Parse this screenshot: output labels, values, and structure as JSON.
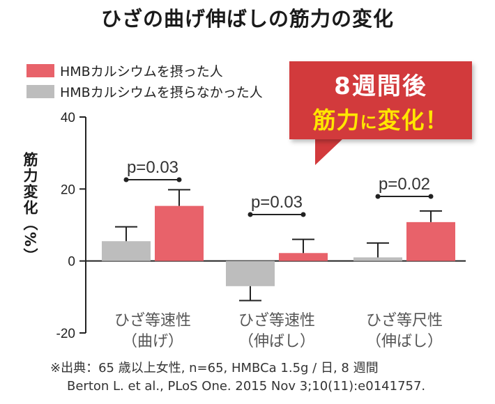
{
  "page_title": "ひざの曲げ伸ばしの筋力の変化",
  "callout": {
    "line1": "8週間後",
    "line2_a": "筋力",
    "line2_b": "に",
    "line2_c": "変化！"
  },
  "footnote": {
    "line1": "※出典：65 歳以上女性, n=65, HMBCa 1.5g / 日, 8 週間",
    "line2": "Berton L. et al., PLoS One. 2015 Nov 3;10(11):e0141757."
  },
  "colors": {
    "hmb": "#e8626a",
    "control": "#bdbdbd",
    "callout_bg": "#d23a3c",
    "callout_text2": "#ffe600"
  },
  "chart_data": {
    "type": "bar",
    "ylabel": "筋力変化（%）",
    "ylim": [
      -20,
      40
    ],
    "yticks": [
      -20,
      0,
      20,
      40
    ],
    "categories": [
      {
        "line1": "ひざ等速性",
        "line2": "（曲げ）"
      },
      {
        "line1": "ひざ等速性",
        "line2": "（伸ばし）"
      },
      {
        "line1": "ひざ等尺性",
        "line2": "（伸ばし）"
      }
    ],
    "series": [
      {
        "name": "HMBカルシウムを摂らなかった人",
        "color": "#bdbdbd",
        "values": [
          5.5,
          -7,
          1
        ],
        "errors": [
          4,
          4,
          4
        ]
      },
      {
        "name": "HMBカルシウムを摂った人",
        "color": "#e8626a",
        "values": [
          15.3,
          2.2,
          10.8
        ],
        "errors": [
          4.5,
          3.8,
          3.1
        ]
      }
    ],
    "legend_order": [
      1,
      0
    ],
    "pvalues": [
      "p=0.03",
      "p=0.03",
      "p=0.02"
    ]
  }
}
